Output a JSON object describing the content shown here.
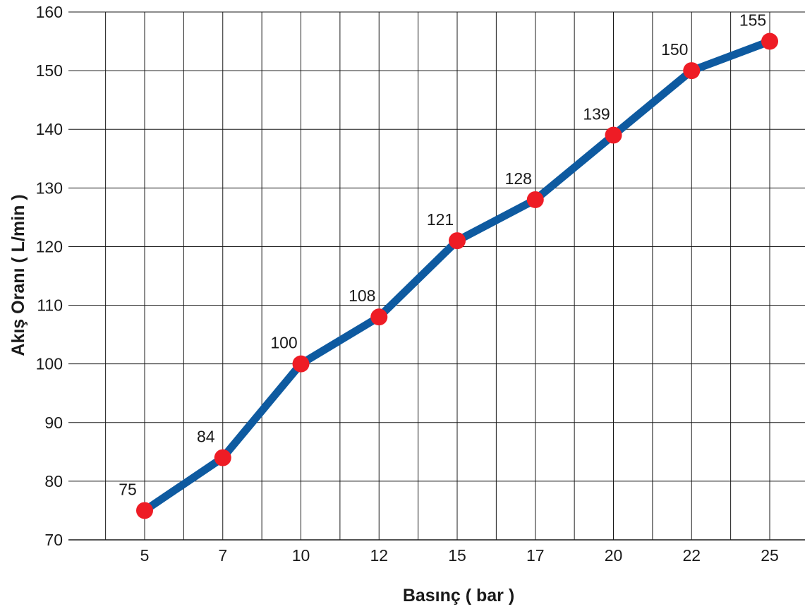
{
  "chart_data": {
    "type": "line",
    "title": "",
    "xlabel": "Basınç ( bar )",
    "ylabel": "Akış Oranı ( L/min )",
    "categories": [
      "5",
      "7",
      "10",
      "12",
      "15",
      "17",
      "20",
      "22",
      "25"
    ],
    "series": [
      {
        "values": [
          75,
          84,
          100,
          108,
          121,
          128,
          139,
          150,
          155
        ],
        "labels": [
          "75",
          "84",
          "100",
          "108",
          "121",
          "128",
          "139",
          "150",
          "155"
        ]
      }
    ],
    "ylim": [
      70,
      160
    ],
    "yticks": [
      "70",
      "80",
      "90",
      "100",
      "110",
      "120",
      "130",
      "140",
      "150",
      "160"
    ],
    "grid": true,
    "line_color": "#0e5aa0",
    "marker_color": "#ee1c25"
  }
}
